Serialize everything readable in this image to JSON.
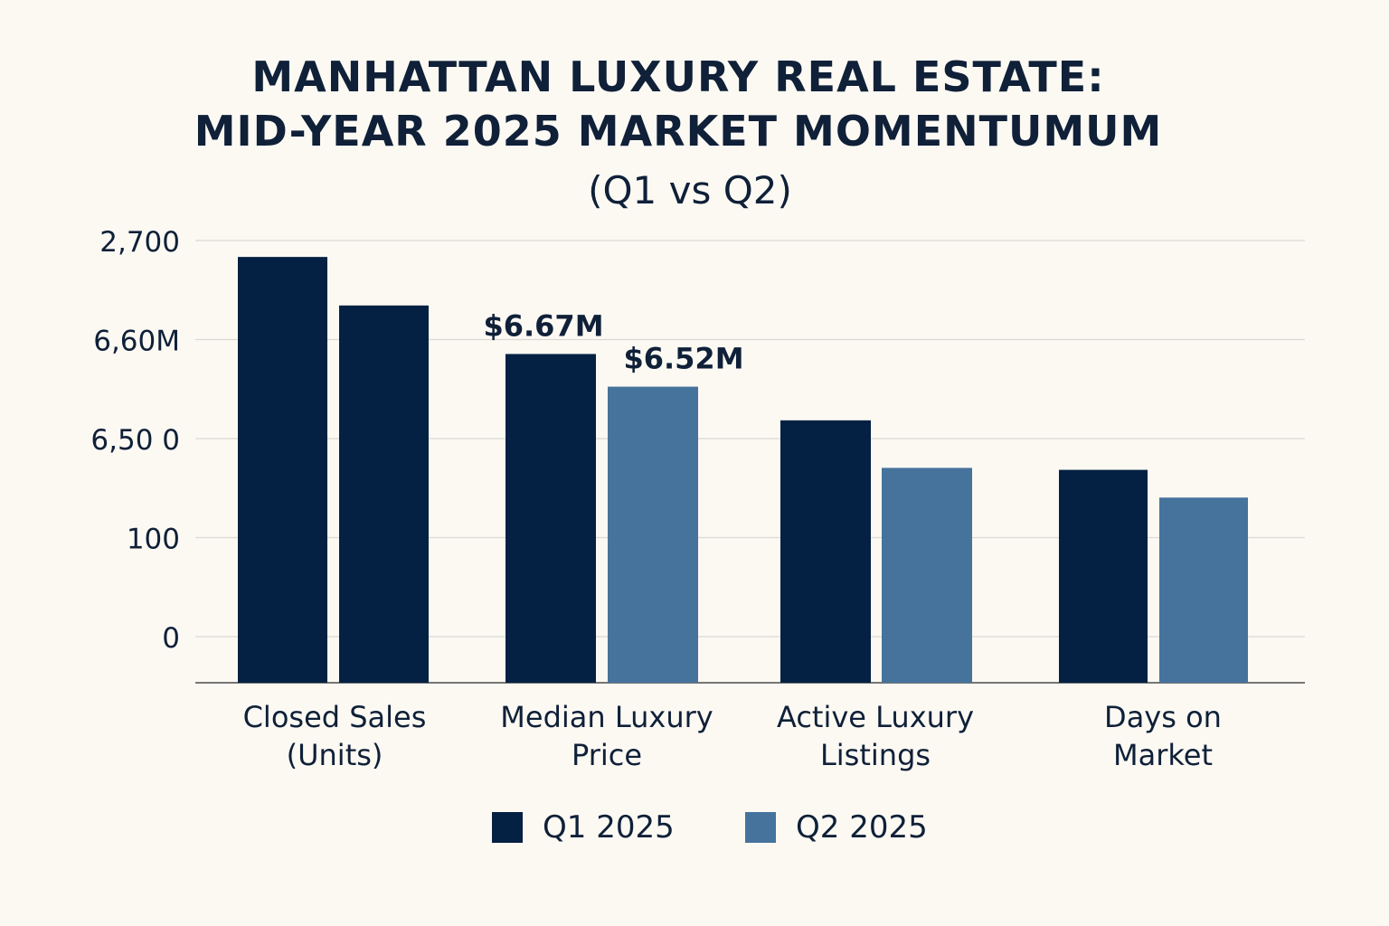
{
  "title_lines": [
    "MANHATTAN LUXURY REAL ESTATE:",
    "MID-YEAR 2025 MARKET MOMENTUMUM"
  ],
  "subtitle": "(Q1 vs Q2)",
  "colors": {
    "background": "#fcf9f3",
    "q1": "#042042",
    "q2": "#46739c",
    "grid": "#d9d9d3",
    "text": "#0f2038"
  },
  "chart_data": {
    "type": "bar",
    "title": "MANHATTAN LUXURY REAL ESTATE: MID-YEAR 2025 MARKET MOMENTUMUM",
    "subtitle": "(Q1 vs Q2)",
    "categories": [
      [
        "Closed Sales",
        "(Units)"
      ],
      [
        "Median Luxury",
        "Price"
      ],
      [
        "Active Luxury",
        "Listings"
      ],
      [
        "Days on",
        "Market"
      ]
    ],
    "ytick_labels": [
      "0",
      "100",
      "6,50 0",
      "6,60M",
      "2,700"
    ],
    "ylim": [
      0,
      4.46
    ],
    "grid": true,
    "legend_position": "bottom",
    "series": [
      {
        "name": "Q1 2025",
        "values": [
          4.3,
          3.32,
          2.65,
          2.15
        ],
        "colors": [
          "#042042",
          "#042042",
          "#042042",
          "#042042"
        ],
        "data_labels": [
          "",
          "$6.67M",
          "",
          ""
        ]
      },
      {
        "name": "Q2 2025",
        "values": [
          3.81,
          2.99,
          2.17,
          1.87
        ],
        "colors": [
          "#042042",
          "#46739c",
          "#46739c",
          "#46739c"
        ],
        "data_labels": [
          "",
          "$6.52M",
          "",
          ""
        ]
      }
    ]
  }
}
